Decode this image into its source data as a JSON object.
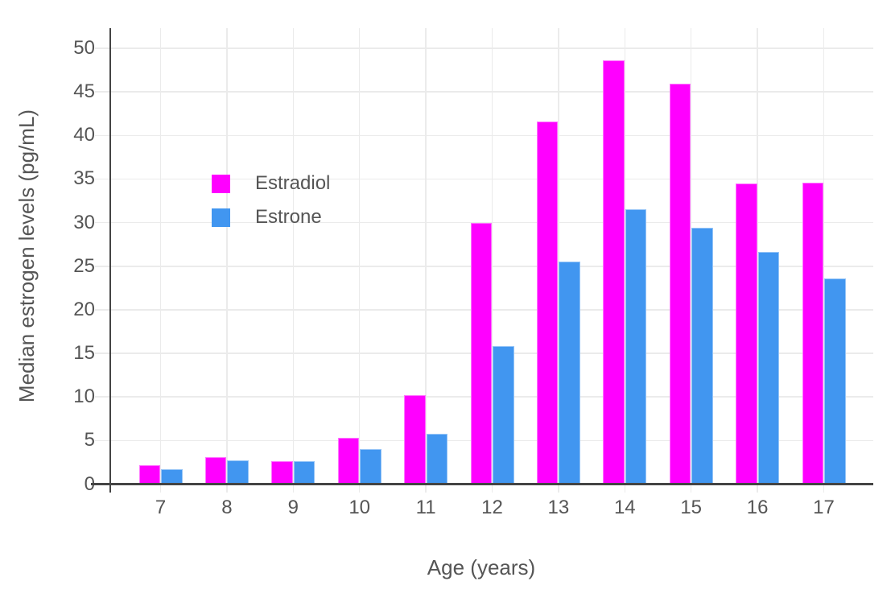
{
  "chart_data": {
    "type": "bar",
    "categories": [
      "7",
      "8",
      "9",
      "10",
      "11",
      "12",
      "13",
      "14",
      "15",
      "16",
      "17"
    ],
    "series": [
      {
        "name": "Estradiol",
        "color": "#ff00ff",
        "values": [
          2.2,
          3.1,
          2.6,
          5.3,
          10.2,
          30.0,
          41.6,
          48.6,
          45.9,
          34.5,
          34.6
        ]
      },
      {
        "name": "Estrone",
        "color": "#4196f0",
        "values": [
          1.7,
          2.7,
          2.6,
          4.0,
          5.8,
          15.8,
          25.5,
          31.5,
          29.4,
          26.6,
          23.6
        ]
      }
    ],
    "title": "",
    "xlabel": "Age (years)",
    "ylabel": "Median estrogen levels (pg/mL)",
    "ylim": [
      0,
      50
    ],
    "ytick_step": 5,
    "yticks": [
      "0",
      "5",
      "10",
      "15",
      "20",
      "25",
      "30",
      "35",
      "40",
      "45",
      "50"
    ],
    "grid": true,
    "legend_position": "inside-top-left"
  },
  "colors": {
    "background": "#ffffff",
    "axis_line": "#444444",
    "gridline": "#ebebeb",
    "text": "#555555"
  }
}
